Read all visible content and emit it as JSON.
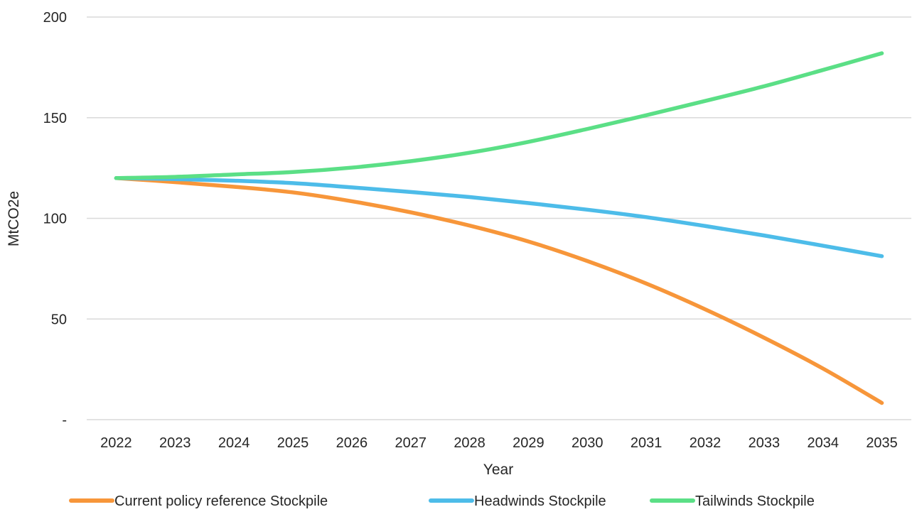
{
  "chart_data": {
    "type": "line",
    "title": "",
    "xlabel": "Year",
    "ylabel": "MtCO2e",
    "categories": [
      "2022",
      "2023",
      "2024",
      "2025",
      "2026",
      "2027",
      "2028",
      "2029",
      "2030",
      "2031",
      "2032",
      "2033",
      "2034",
      "2035"
    ],
    "ylim": [
      0,
      200
    ],
    "yticks": [
      0,
      50,
      100,
      150,
      200
    ],
    "ytick_labels": [
      "-",
      "50",
      "100",
      "150",
      "200"
    ],
    "grid": true,
    "legend_position": "bottom",
    "series": [
      {
        "name": "Current policy reference Stockpile",
        "color": "#F7963A",
        "values": [
          120,
          118,
          115.7,
          112.9,
          108.5,
          103,
          96.4,
          88.5,
          78.8,
          67.6,
          54.8,
          40.7,
          25.4,
          8.3
        ]
      },
      {
        "name": "Headwinds Stockpile",
        "color": "#4DBCE9",
        "values": [
          120,
          119.5,
          118.7,
          117.5,
          115.4,
          113.1,
          110.6,
          107.6,
          104.3,
          100.6,
          96.2,
          91.5,
          86.4,
          81.2
        ]
      },
      {
        "name": "Tailwinds Stockpile",
        "color": "#5BDF86",
        "values": [
          120,
          120.6,
          121.8,
          123,
          125.2,
          128.4,
          132.6,
          138,
          144.4,
          151.2,
          158.3,
          165.6,
          173.7,
          182
        ]
      }
    ]
  }
}
